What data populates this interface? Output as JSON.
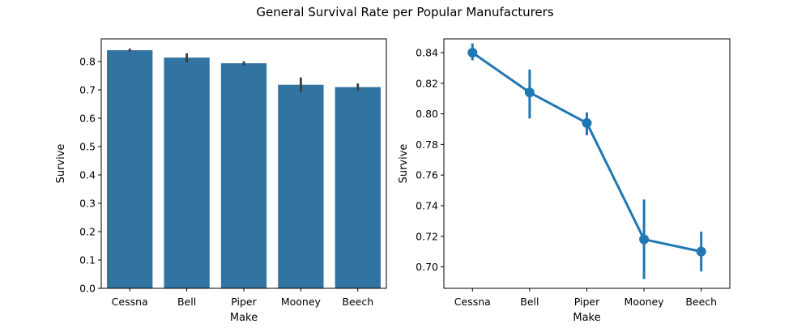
{
  "figure_title": "General Survival Rate per Popular Manufacturers",
  "chart_data": [
    {
      "type": "bar",
      "categories": [
        "Cessna",
        "Bell",
        "Piper",
        "Mooney",
        "Beech"
      ],
      "values": [
        0.84,
        0.814,
        0.794,
        0.718,
        0.71
      ],
      "error_low": [
        0.835,
        0.797,
        0.786,
        0.692,
        0.697
      ],
      "error_high": [
        0.846,
        0.829,
        0.801,
        0.744,
        0.723
      ],
      "xlabel": "Make",
      "ylabel": "Survive",
      "ylim": [
        0,
        0.88
      ],
      "yticks": [
        0.0,
        0.1,
        0.2,
        0.3,
        0.4,
        0.5,
        0.6,
        0.7,
        0.8
      ],
      "ytick_labels": [
        "0.0",
        "0.1",
        "0.2",
        "0.3",
        "0.4",
        "0.5",
        "0.6",
        "0.7",
        "0.8"
      ],
      "bar_color": "#3274a1",
      "errorbar_color": "#3d3d3d",
      "grid": false
    },
    {
      "type": "line",
      "categories": [
        "Cessna",
        "Bell",
        "Piper",
        "Mooney",
        "Beech"
      ],
      "values": [
        0.84,
        0.814,
        0.794,
        0.718,
        0.71
      ],
      "error_low": [
        0.835,
        0.797,
        0.786,
        0.692,
        0.697
      ],
      "error_high": [
        0.846,
        0.829,
        0.801,
        0.744,
        0.723
      ],
      "xlabel": "Make",
      "ylabel": "Survive",
      "ylim": [
        0.686,
        0.849
      ],
      "yticks": [
        0.7,
        0.72,
        0.74,
        0.76,
        0.78,
        0.8,
        0.82,
        0.84
      ],
      "ytick_labels": [
        "0.70",
        "0.72",
        "0.74",
        "0.76",
        "0.78",
        "0.80",
        "0.82",
        "0.84"
      ],
      "line_color": "#1f77b4",
      "grid": false
    }
  ]
}
